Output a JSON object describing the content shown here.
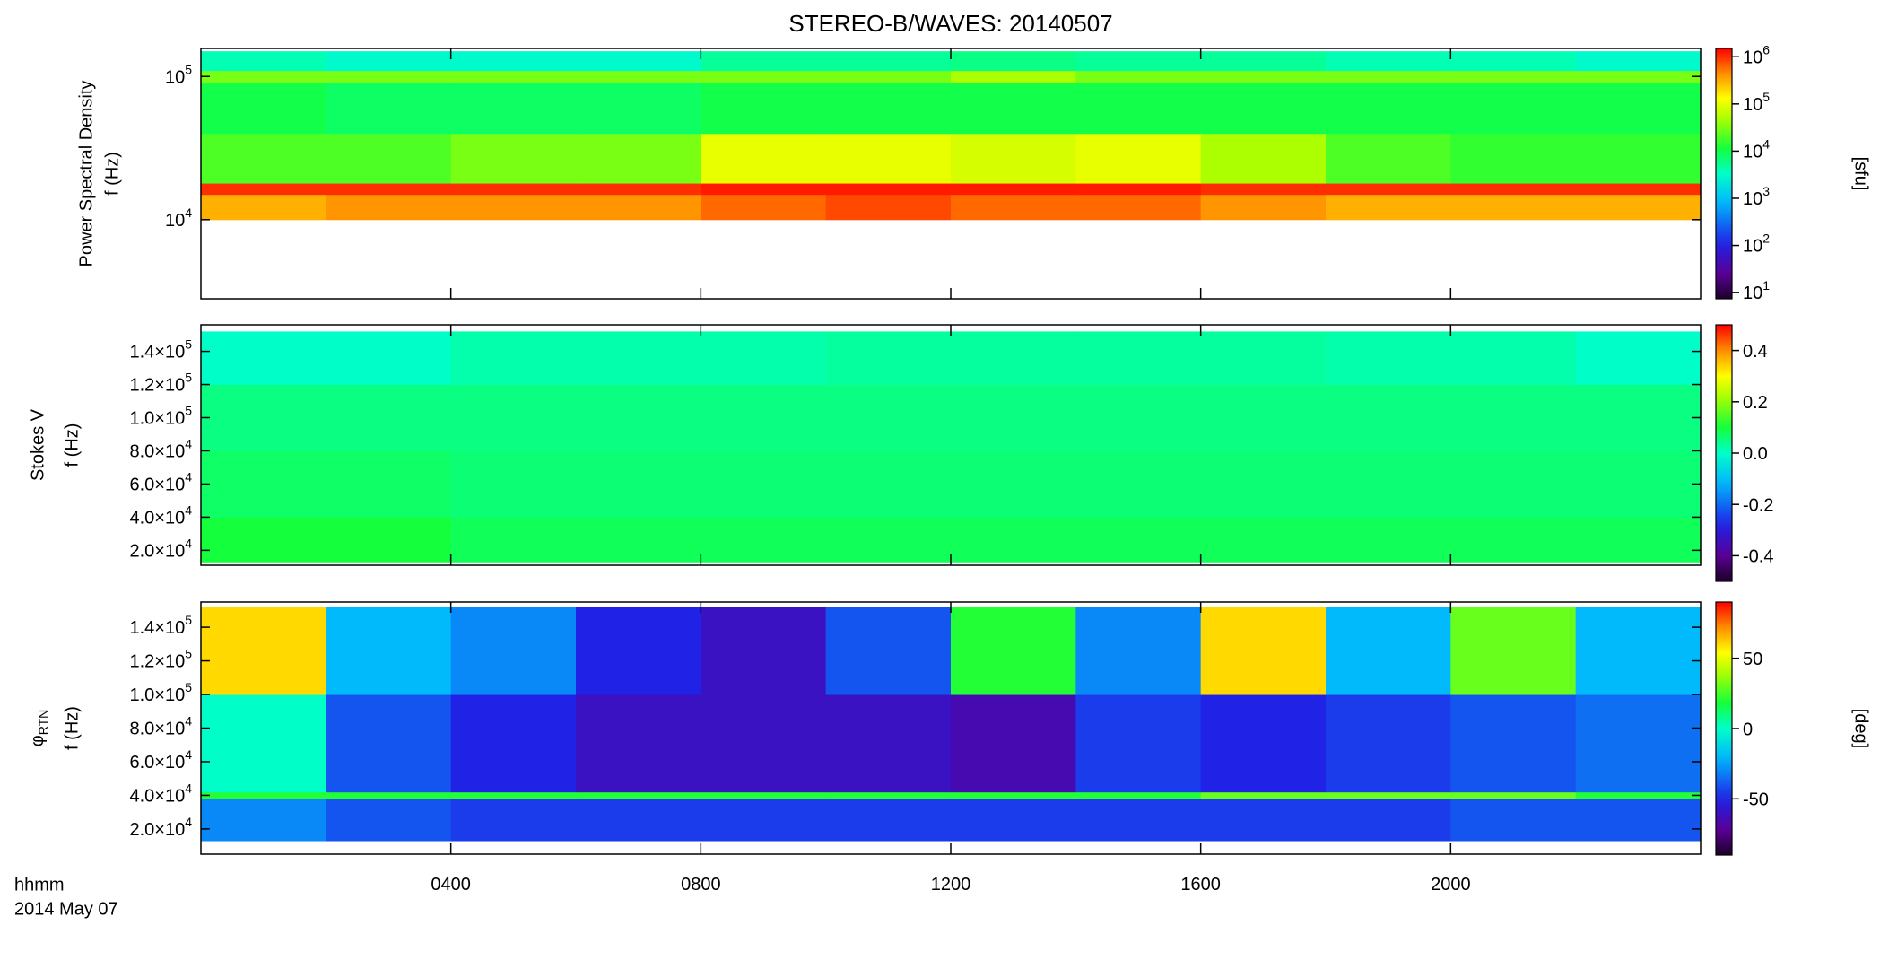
{
  "title": "STEREO-B/WAVES: 20140507",
  "x_axis": {
    "xlim": [
      0,
      24
    ],
    "xticks": [
      {
        "value": 4,
        "label": "0400"
      },
      {
        "value": 8,
        "label": "0800"
      },
      {
        "value": 12,
        "label": "1200"
      },
      {
        "value": 16,
        "label": "1600"
      },
      {
        "value": 20,
        "label": "2000"
      }
    ],
    "time_label": "hhmm",
    "date": "2014 May 07"
  },
  "chart_data": [
    {
      "type": "heatmap",
      "ylabel": [
        "Power Spectral Density",
        "f (Hz)"
      ],
      "ylog": true,
      "ylim": [
        2800,
        157000
      ],
      "yticks": [
        {
          "value": 10000,
          "label": "10",
          "exponent": "4"
        },
        {
          "value": 100000,
          "label": "10",
          "exponent": "5"
        }
      ],
      "colormap": "rainbow",
      "zlog": true,
      "clim": [
        7.4,
        1500000
      ],
      "clabel": "[sfu]",
      "cticks": [
        {
          "value": 1000000,
          "label": "10",
          "exponent": "6"
        },
        {
          "value": 100000,
          "label": "10",
          "exponent": "5"
        },
        {
          "value": 10000,
          "label": "10",
          "exponent": "4"
        },
        {
          "value": 1000,
          "label": "10",
          "exponent": "3"
        },
        {
          "value": 100,
          "label": "10",
          "exponent": "2"
        },
        {
          "value": 10,
          "label": "10",
          "exponent": "1"
        }
      ],
      "x_edges": [
        0,
        2,
        4,
        6,
        8,
        10,
        12,
        14,
        16,
        18,
        20,
        22,
        24
      ],
      "y_edges": [
        10000,
        15000,
        18000,
        40000,
        90000,
        110000,
        150000
      ],
      "z": [
        [
          300000,
          400000,
          400000,
          400000,
          600000,
          800000,
          600000,
          600000,
          400000,
          300000,
          300000,
          300000
        ],
        [
          1000000,
          1000000,
          1000000,
          1000000,
          1200000,
          1200000,
          1200000,
          1200000,
          1000000,
          1000000,
          1000000,
          1000000
        ],
        [
          20000,
          20000,
          30000,
          30000,
          100000,
          100000,
          80000,
          100000,
          50000,
          20000,
          15000,
          15000
        ],
        [
          10000,
          8000,
          8000,
          8000,
          10000,
          10000,
          10000,
          10000,
          10000,
          10000,
          10000,
          10000
        ],
        [
          30000,
          30000,
          30000,
          30000,
          30000,
          30000,
          50000,
          30000,
          30000,
          30000,
          30000,
          30000
        ],
        [
          4000,
          3000,
          3000,
          3000,
          5000,
          5000,
          6000,
          5000,
          5000,
          4000,
          4000,
          3000
        ]
      ]
    },
    {
      "type": "heatmap",
      "ylabel": [
        "Stokes V",
        "f (Hz)"
      ],
      "ylog": false,
      "ylim": [
        11000,
        156000
      ],
      "yticks": [
        {
          "value": 20000,
          "label": "2.0×10",
          "exponent": "4"
        },
        {
          "value": 40000,
          "label": "4.0×10",
          "exponent": "4"
        },
        {
          "value": 60000,
          "label": "6.0×10",
          "exponent": "4"
        },
        {
          "value": 80000,
          "label": "8.0×10",
          "exponent": "4"
        },
        {
          "value": 100000,
          "label": "1.0×10",
          "exponent": "5"
        },
        {
          "value": 120000,
          "label": "1.2×10",
          "exponent": "5"
        },
        {
          "value": 140000,
          "label": "1.4×10",
          "exponent": "5"
        }
      ],
      "colormap": "rainbow",
      "zlog": false,
      "clim": [
        -0.5,
        0.5
      ],
      "cticks": [
        0.4,
        0.2,
        {
          "value": 0,
          "label": "0.0"
        },
        -0.2,
        -0.4
      ],
      "x_edges": [
        0,
        2,
        4,
        6,
        8,
        10,
        12,
        14,
        16,
        18,
        20,
        22,
        24
      ],
      "y_edges": [
        13000,
        40000,
        80000,
        120000,
        152000
      ],
      "z": [
        [
          0.1,
          0.1,
          0.08,
          0.08,
          0.08,
          0.08,
          0.08,
          0.08,
          0.08,
          0.08,
          0.08,
          0.08
        ],
        [
          0.07,
          0.07,
          0.06,
          0.06,
          0.06,
          0.06,
          0.06,
          0.06,
          0.06,
          0.06,
          0.06,
          0.06
        ],
        [
          0.05,
          0.05,
          0.05,
          0.05,
          0.05,
          0.05,
          0.05,
          0.05,
          0.05,
          0.05,
          0.05,
          0.05
        ],
        [
          0.0,
          0.0,
          0.02,
          0.02,
          0.02,
          0.03,
          0.03,
          0.03,
          0.03,
          0.02,
          0.02,
          0.0
        ]
      ]
    },
    {
      "type": "heatmap",
      "ylabel": [
        "φ",
        "f (Hz)"
      ],
      "ylabel_subscript": "RTN",
      "ylog": false,
      "ylim": [
        5000,
        155000
      ],
      "yticks": [
        {
          "value": 20000,
          "label": "2.0×10",
          "exponent": "4"
        },
        {
          "value": 40000,
          "label": "4.0×10",
          "exponent": "4"
        },
        {
          "value": 60000,
          "label": "6.0×10",
          "exponent": "4"
        },
        {
          "value": 80000,
          "label": "8.0×10",
          "exponent": "4"
        },
        {
          "value": 100000,
          "label": "1.0×10",
          "exponent": "5"
        },
        {
          "value": 120000,
          "label": "1.2×10",
          "exponent": "5"
        },
        {
          "value": 140000,
          "label": "1.4×10",
          "exponent": "5"
        }
      ],
      "colormap": "rainbow",
      "zlog": false,
      "clim": [
        -90,
        90
      ],
      "clabel": "[deg]",
      "cticks": [
        50,
        0,
        -50
      ],
      "x_edges": [
        0,
        2,
        4,
        6,
        8,
        10,
        12,
        14,
        16,
        18,
        20,
        22,
        24
      ],
      "y_edges": [
        13000,
        38000,
        42000,
        100000,
        152000
      ],
      "z": [
        [
          -30,
          -40,
          -45,
          -45,
          -45,
          -45,
          -45,
          -45,
          -45,
          -45,
          -40,
          -40
        ],
        [
          20,
          20,
          20,
          20,
          20,
          20,
          20,
          20,
          30,
          30,
          30,
          20
        ],
        [
          0,
          -40,
          -50,
          -60,
          -60,
          -60,
          -65,
          -45,
          -50,
          -45,
          -40,
          -35
        ],
        [
          60,
          -20,
          -30,
          -50,
          -60,
          -40,
          20,
          -30,
          60,
          -20,
          30,
          -20
        ]
      ]
    }
  ]
}
